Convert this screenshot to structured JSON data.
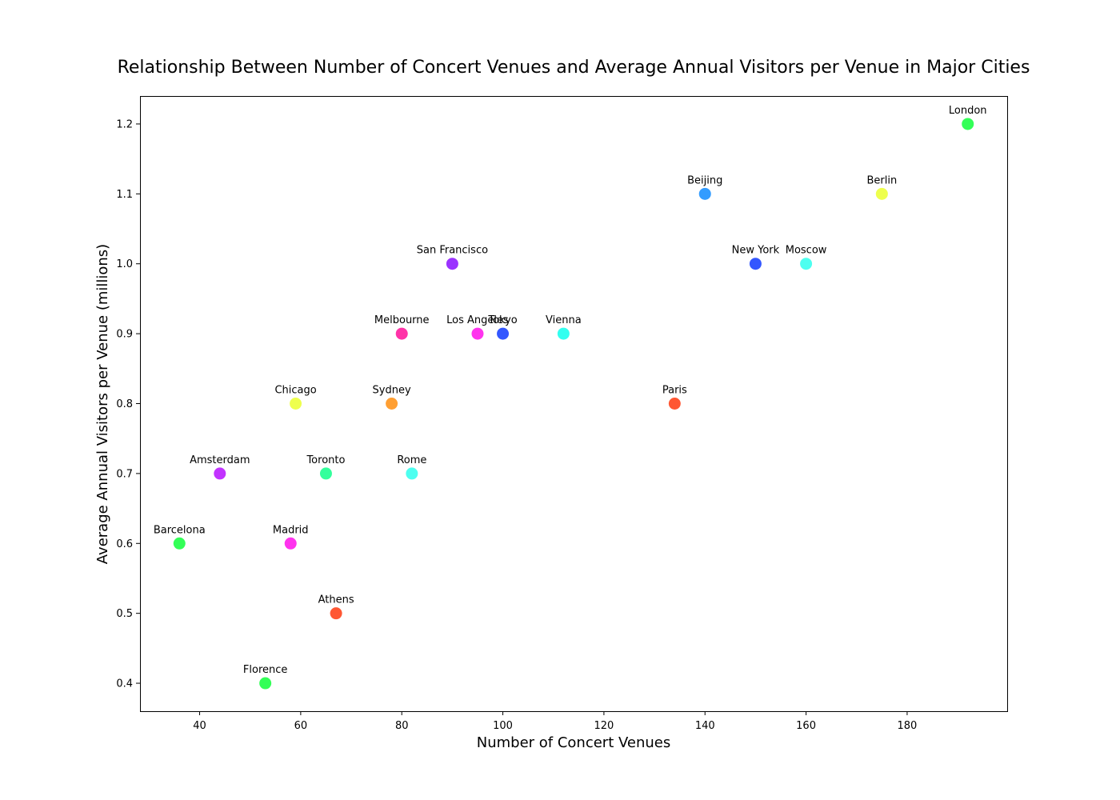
{
  "chart_data": {
    "type": "scatter",
    "title": "Relationship Between Number of Concert Venues and Average Annual Visitors per Venue in Major Cities",
    "xlabel": "Number of Concert Venues",
    "ylabel": "Average Annual Visitors per Venue (millions)",
    "xlim": [
      28.2,
      199.8
    ],
    "ylim": [
      0.36,
      1.24
    ],
    "xticks": [
      40,
      60,
      80,
      100,
      120,
      140,
      160,
      180
    ],
    "yticks": [
      0.4,
      0.5,
      0.6,
      0.7,
      0.8,
      0.9,
      1.0,
      1.1,
      1.2
    ],
    "xtick_labels": [
      "40",
      "60",
      "80",
      "100",
      "120",
      "140",
      "160",
      "180"
    ],
    "ytick_labels": [
      "0.4",
      "0.5",
      "0.6",
      "0.7",
      "0.8",
      "0.9",
      "1.0",
      "1.1",
      "1.2"
    ],
    "grid": false,
    "points": [
      {
        "label": "London",
        "x": 192,
        "y": 1.2,
        "color": "#33ff57"
      },
      {
        "label": "Beijing",
        "x": 140,
        "y": 1.1,
        "color": "#339cff"
      },
      {
        "label": "Berlin",
        "x": 175,
        "y": 1.1,
        "color": "#eeff4d"
      },
      {
        "label": "San Francisco",
        "x": 90,
        "y": 1.0,
        "color": "#9b33ff"
      },
      {
        "label": "New York",
        "x": 150,
        "y": 1.0,
        "color": "#3357ff"
      },
      {
        "label": "Moscow",
        "x": 160,
        "y": 1.0,
        "color": "#4dfff0"
      },
      {
        "label": "Melbourne",
        "x": 80,
        "y": 0.9,
        "color": "#ff33a8"
      },
      {
        "label": "Los Angeles",
        "x": 95,
        "y": 0.9,
        "color": "#ff33ee"
      },
      {
        "label": "Tokyo",
        "x": 100,
        "y": 0.9,
        "color": "#3357ff"
      },
      {
        "label": "Vienna",
        "x": 112,
        "y": 0.9,
        "color": "#33fff0"
      },
      {
        "label": "Chicago",
        "x": 59,
        "y": 0.8,
        "color": "#eeff4d"
      },
      {
        "label": "Sydney",
        "x": 78,
        "y": 0.8,
        "color": "#ff9f33"
      },
      {
        "label": "Paris",
        "x": 134,
        "y": 0.8,
        "color": "#ff5733"
      },
      {
        "label": "Amsterdam",
        "x": 44,
        "y": 0.7,
        "color": "#c233ff"
      },
      {
        "label": "Toronto",
        "x": 65,
        "y": 0.7,
        "color": "#33ff9c"
      },
      {
        "label": "Rome",
        "x": 82,
        "y": 0.7,
        "color": "#4dfff0"
      },
      {
        "label": "Barcelona",
        "x": 36,
        "y": 0.6,
        "color": "#33ff57"
      },
      {
        "label": "Madrid",
        "x": 58,
        "y": 0.6,
        "color": "#ff33ee"
      },
      {
        "label": "Athens",
        "x": 67,
        "y": 0.5,
        "color": "#ff5733"
      },
      {
        "label": "Florence",
        "x": 53,
        "y": 0.4,
        "color": "#33ff57"
      }
    ]
  }
}
